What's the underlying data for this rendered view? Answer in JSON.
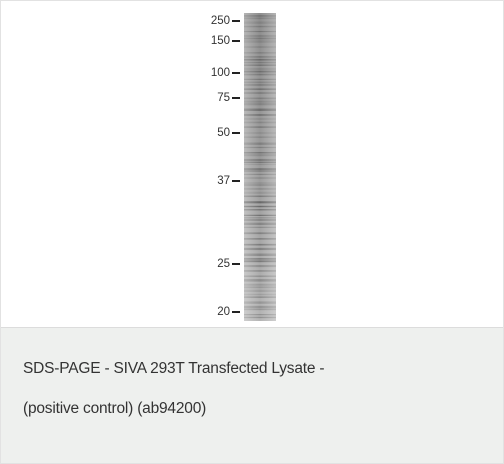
{
  "gel": {
    "markers": [
      "250",
      "150",
      "100",
      "75",
      "50",
      "37",
      "25",
      "20"
    ]
  },
  "caption": {
    "lines": [
      "SDS-PAGE - SIVA 293T Transfected Lysate -",
      "(positive control) (ab94200)"
    ]
  }
}
